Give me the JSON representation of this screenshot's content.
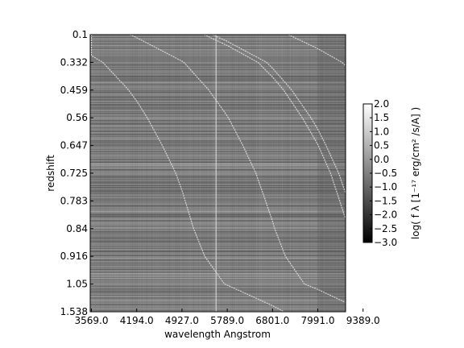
{
  "chart_data": {
    "type": "heatmap",
    "title": "",
    "xlabel": "wavelength Angstrom",
    "ylabel": "redshift",
    "x_ticks": [
      "3569.0",
      "4194.0",
      "4927.0",
      "5789.0",
      "6801.0",
      "7991.0",
      "9389.0"
    ],
    "y_ticks": [
      "0.1",
      "0.332",
      "0.459",
      "0.56",
      "0.647",
      "0.725",
      "0.783",
      "0.84",
      "0.916",
      "1.05",
      "1.538"
    ],
    "colorbar": {
      "label": "log( f λ [1⁻¹⁷ erg/cm² /s/A] )",
      "range": [
        -3.0,
        2.0
      ],
      "ticks": [
        "2.0",
        "1.5",
        "1.0",
        "0.5",
        "0.0",
        "−0.5",
        "−1.0",
        "−1.5",
        "−2.0",
        "−2.5",
        "−3.0"
      ],
      "colormap": "gray"
    },
    "emission_lines_rest_angstrom": [
      2798,
      3727,
      4861,
      5007,
      6563
    ],
    "sky_line_observed_angstrom": 5577,
    "colors": {
      "background": "#ffffff",
      "frame": "#000000",
      "heatmap_mid": "#777777"
    }
  }
}
